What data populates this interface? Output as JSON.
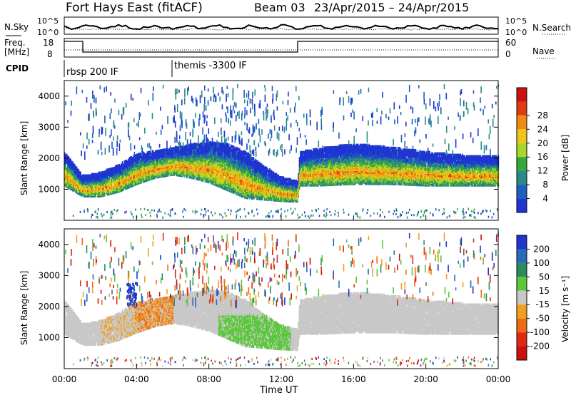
{
  "header": {
    "station": "Fort Hays East (fitACF)",
    "beam": "Beam 03",
    "date_range": "23/Apr/2015 – 24/Apr/2015"
  },
  "top_panel": {
    "left_label": "N.Sky",
    "left_ticks": [
      "10^5",
      "10^0"
    ],
    "right_ticks": [
      "10^5",
      "10^0"
    ],
    "right_label": "N.Search"
  },
  "freq_panel": {
    "left_label_1": "Freq.",
    "left_label_2": "[MHz]",
    "left_ticks": [
      "18",
      "8"
    ],
    "right_ticks": [
      "60",
      "0"
    ],
    "right_label": "Nave"
  },
  "cpid_panel": {
    "label": "CPID",
    "program_1": "rbsp 200 IF",
    "program_2": "themis -3300 IF"
  },
  "chart_data": [
    {
      "type": "heatmap",
      "title": "",
      "ylabel": "Slant Range [km]",
      "yticks": [
        "1000",
        "2000",
        "3000",
        "4000"
      ],
      "ylim": [
        0,
        4500
      ],
      "colorbar": {
        "label": "Power [dB]",
        "ticks": [
          "4",
          "8",
          "12",
          "16",
          "20",
          "24",
          "28"
        ],
        "colors": [
          "#1f35d0",
          "#1e5fbf",
          "#2a8a88",
          "#36a83a",
          "#a8d62a",
          "#f2c418",
          "#f08a14",
          "#e03a14",
          "#cc1010"
        ]
      },
      "band": {
        "hours": [
          0,
          1,
          2,
          3,
          4,
          5,
          6,
          7,
          8,
          9,
          10,
          11,
          12,
          12.9,
          13,
          14,
          16,
          18,
          20,
          22,
          24
        ],
        "center_km": [
          1700,
          1150,
          1200,
          1400,
          1700,
          1850,
          1950,
          1950,
          1900,
          1750,
          1500,
          1250,
          1050,
          980,
          1700,
          1750,
          1850,
          1800,
          1700,
          1650,
          1650
        ],
        "width_km": [
          500,
          300,
          350,
          400,
          450,
          400,
          400,
          500,
          600,
          700,
          700,
          500,
          350,
          300,
          500,
          550,
          600,
          550,
          500,
          450,
          450
        ]
      }
    },
    {
      "type": "heatmap",
      "title": "",
      "ylabel": "Slant Range [km]",
      "xlabel": "Time UT",
      "xticks": [
        "00:00",
        "04:00",
        "08:00",
        "12:00",
        "16:00",
        "20:00",
        "00:00"
      ],
      "yticks": [
        "1000",
        "2000",
        "3000",
        "4000"
      ],
      "ylim": [
        0,
        4500
      ],
      "colorbar": {
        "label": "Velocity [m s⁻¹]",
        "ticks": [
          "200",
          "100",
          "50",
          "15",
          "-15",
          "-50",
          "-100",
          "-200"
        ],
        "colors": [
          "#1f35d0",
          "#2a6ab8",
          "#2a8a60",
          "#5ac83a",
          "#c8c8c8",
          "#f0a020",
          "#f06a14",
          "#e02a10",
          "#cc1010"
        ]
      }
    }
  ]
}
